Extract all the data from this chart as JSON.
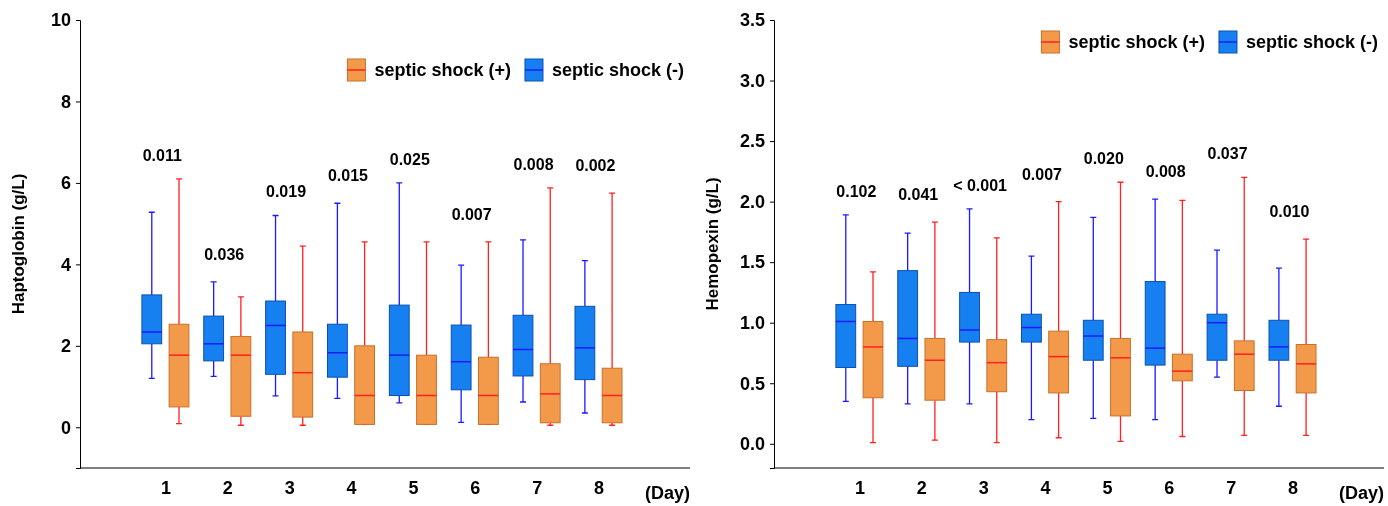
{
  "chart_data": [
    {
      "type": "box",
      "categories": [
        "1",
        "2",
        "3",
        "4",
        "5",
        "6",
        "7",
        "8"
      ],
      "xlabel": "(Day)",
      "ylabel": "Haptoglobin (g/L)",
      "ylim": [
        -1,
        10
      ],
      "yticks": [
        0,
        2,
        4,
        6,
        8,
        10
      ],
      "legend": "top right",
      "grid": false,
      "series": [
        {
          "name": "septic shock (+)",
          "color": "#f39a4a",
          "boxes": [
            {
              "low": 0.09,
              "q1": 0.5,
              "median": 1.77,
              "q3": 2.53,
              "high": 6.1
            },
            {
              "low": 0.05,
              "q1": 0.27,
              "median": 1.77,
              "q3": 2.23,
              "high": 3.2
            },
            {
              "low": 0.05,
              "q1": 0.25,
              "median": 1.34,
              "q3": 2.34,
              "high": 4.45
            },
            {
              "low": 0.07,
              "q1": 0.07,
              "median": 0.78,
              "q3": 2.0,
              "high": 4.55
            },
            {
              "low": 0.07,
              "q1": 0.07,
              "median": 0.78,
              "q3": 1.77,
              "high": 4.55
            },
            {
              "low": 0.07,
              "q1": 0.07,
              "median": 0.78,
              "q3": 1.72,
              "high": 4.55
            },
            {
              "low": 0.05,
              "q1": 0.11,
              "median": 0.82,
              "q3": 1.56,
              "high": 5.88
            },
            {
              "low": 0.05,
              "q1": 0.11,
              "median": 0.78,
              "q3": 1.45,
              "high": 5.75
            }
          ]
        },
        {
          "name": "septic shock (-)",
          "color": "#1680f0",
          "boxes": [
            {
              "low": 1.2,
              "q1": 2.05,
              "median": 2.34,
              "q3": 3.25,
              "high": 5.28
            },
            {
              "low": 1.25,
              "q1": 1.63,
              "median": 2.05,
              "q3": 2.73,
              "high": 3.57
            },
            {
              "low": 0.77,
              "q1": 1.3,
              "median": 2.5,
              "q3": 3.1,
              "high": 5.2
            },
            {
              "low": 0.71,
              "q1": 1.23,
              "median": 1.83,
              "q3": 2.53,
              "high": 5.5
            },
            {
              "low": 0.6,
              "q1": 0.78,
              "median": 1.77,
              "q3": 3.0,
              "high": 6.0
            },
            {
              "low": 0.12,
              "q1": 0.92,
              "median": 1.61,
              "q3": 2.51,
              "high": 3.98
            },
            {
              "low": 0.62,
              "q1": 1.26,
              "median": 1.91,
              "q3": 2.75,
              "high": 4.6
            },
            {
              "low": 0.35,
              "q1": 1.17,
              "median": 1.95,
              "q3": 2.97,
              "high": 4.09
            }
          ]
        }
      ],
      "annotations": [
        "0.011",
        "0.036",
        "0.019",
        "0.015",
        "0.025",
        "0.007",
        "0.008",
        "0.002"
      ]
    },
    {
      "type": "box",
      "categories": [
        "1",
        "2",
        "3",
        "4",
        "5",
        "6",
        "7",
        "8"
      ],
      "xlabel": "(Day)",
      "ylabel": "Hemopexin (g/L)",
      "ylim": [
        -0.2,
        3.5
      ],
      "yticks": [
        {
          "value": 0,
          "label": "0.0"
        },
        {
          "value": 0.5,
          "label": "0.5"
        },
        {
          "value": 1,
          "label": "1.0"
        },
        {
          "value": 1.5,
          "label": "1.5"
        },
        {
          "value": 2,
          "label": "2.0"
        },
        {
          "value": 2.5,
          "label": "2.5"
        },
        {
          "value": 3,
          "label": "3.0"
        },
        {
          "value": 3.5,
          "label": "3.5"
        }
      ],
      "legend": "top right",
      "grid": false,
      "series": [
        {
          "name": "septic shock (+)",
          "color": "#f39a4a",
          "boxes": [
            {
              "low": 0.01,
              "q1": 0.38,
              "median": 0.8,
              "q3": 1.01,
              "high": 1.42
            },
            {
              "low": 0.03,
              "q1": 0.36,
              "median": 0.69,
              "q3": 0.87,
              "high": 1.83
            },
            {
              "low": 0.01,
              "q1": 0.43,
              "median": 0.67,
              "q3": 0.86,
              "high": 1.7
            },
            {
              "low": 0.05,
              "q1": 0.42,
              "median": 0.72,
              "q3": 0.93,
              "high": 2.0
            },
            {
              "low": 0.02,
              "q1": 0.23,
              "median": 0.71,
              "q3": 0.87,
              "high": 2.16
            },
            {
              "low": 0.06,
              "q1": 0.52,
              "median": 0.6,
              "q3": 0.74,
              "high": 2.01
            },
            {
              "low": 0.07,
              "q1": 0.44,
              "median": 0.74,
              "q3": 0.85,
              "high": 2.2
            },
            {
              "low": 0.07,
              "q1": 0.42,
              "median": 0.66,
              "q3": 0.82,
              "high": 1.69
            }
          ]
        },
        {
          "name": "septic shock (-)",
          "color": "#1680f0",
          "boxes": [
            {
              "low": 0.35,
              "q1": 0.63,
              "median": 1.01,
              "q3": 1.15,
              "high": 1.89
            },
            {
              "low": 0.33,
              "q1": 0.64,
              "median": 0.87,
              "q3": 1.43,
              "high": 1.74
            },
            {
              "low": 0.33,
              "q1": 0.84,
              "median": 0.94,
              "q3": 1.25,
              "high": 1.94
            },
            {
              "low": 0.2,
              "q1": 0.84,
              "median": 0.96,
              "q3": 1.07,
              "high": 1.55
            },
            {
              "low": 0.21,
              "q1": 0.69,
              "median": 0.89,
              "q3": 1.02,
              "high": 1.87
            },
            {
              "low": 0.2,
              "q1": 0.65,
              "median": 0.79,
              "q3": 1.34,
              "high": 2.02
            },
            {
              "low": 0.55,
              "q1": 0.69,
              "median": 1.0,
              "q3": 1.07,
              "high": 1.6
            },
            {
              "low": 0.31,
              "q1": 0.69,
              "median": 0.8,
              "q3": 1.02,
              "high": 1.45
            }
          ]
        }
      ],
      "annotations": [
        "0.102",
        "0.041",
        "< 0.001",
        "0.007",
        "0.020",
        "0.008",
        "0.037",
        "0.010"
      ]
    }
  ]
}
